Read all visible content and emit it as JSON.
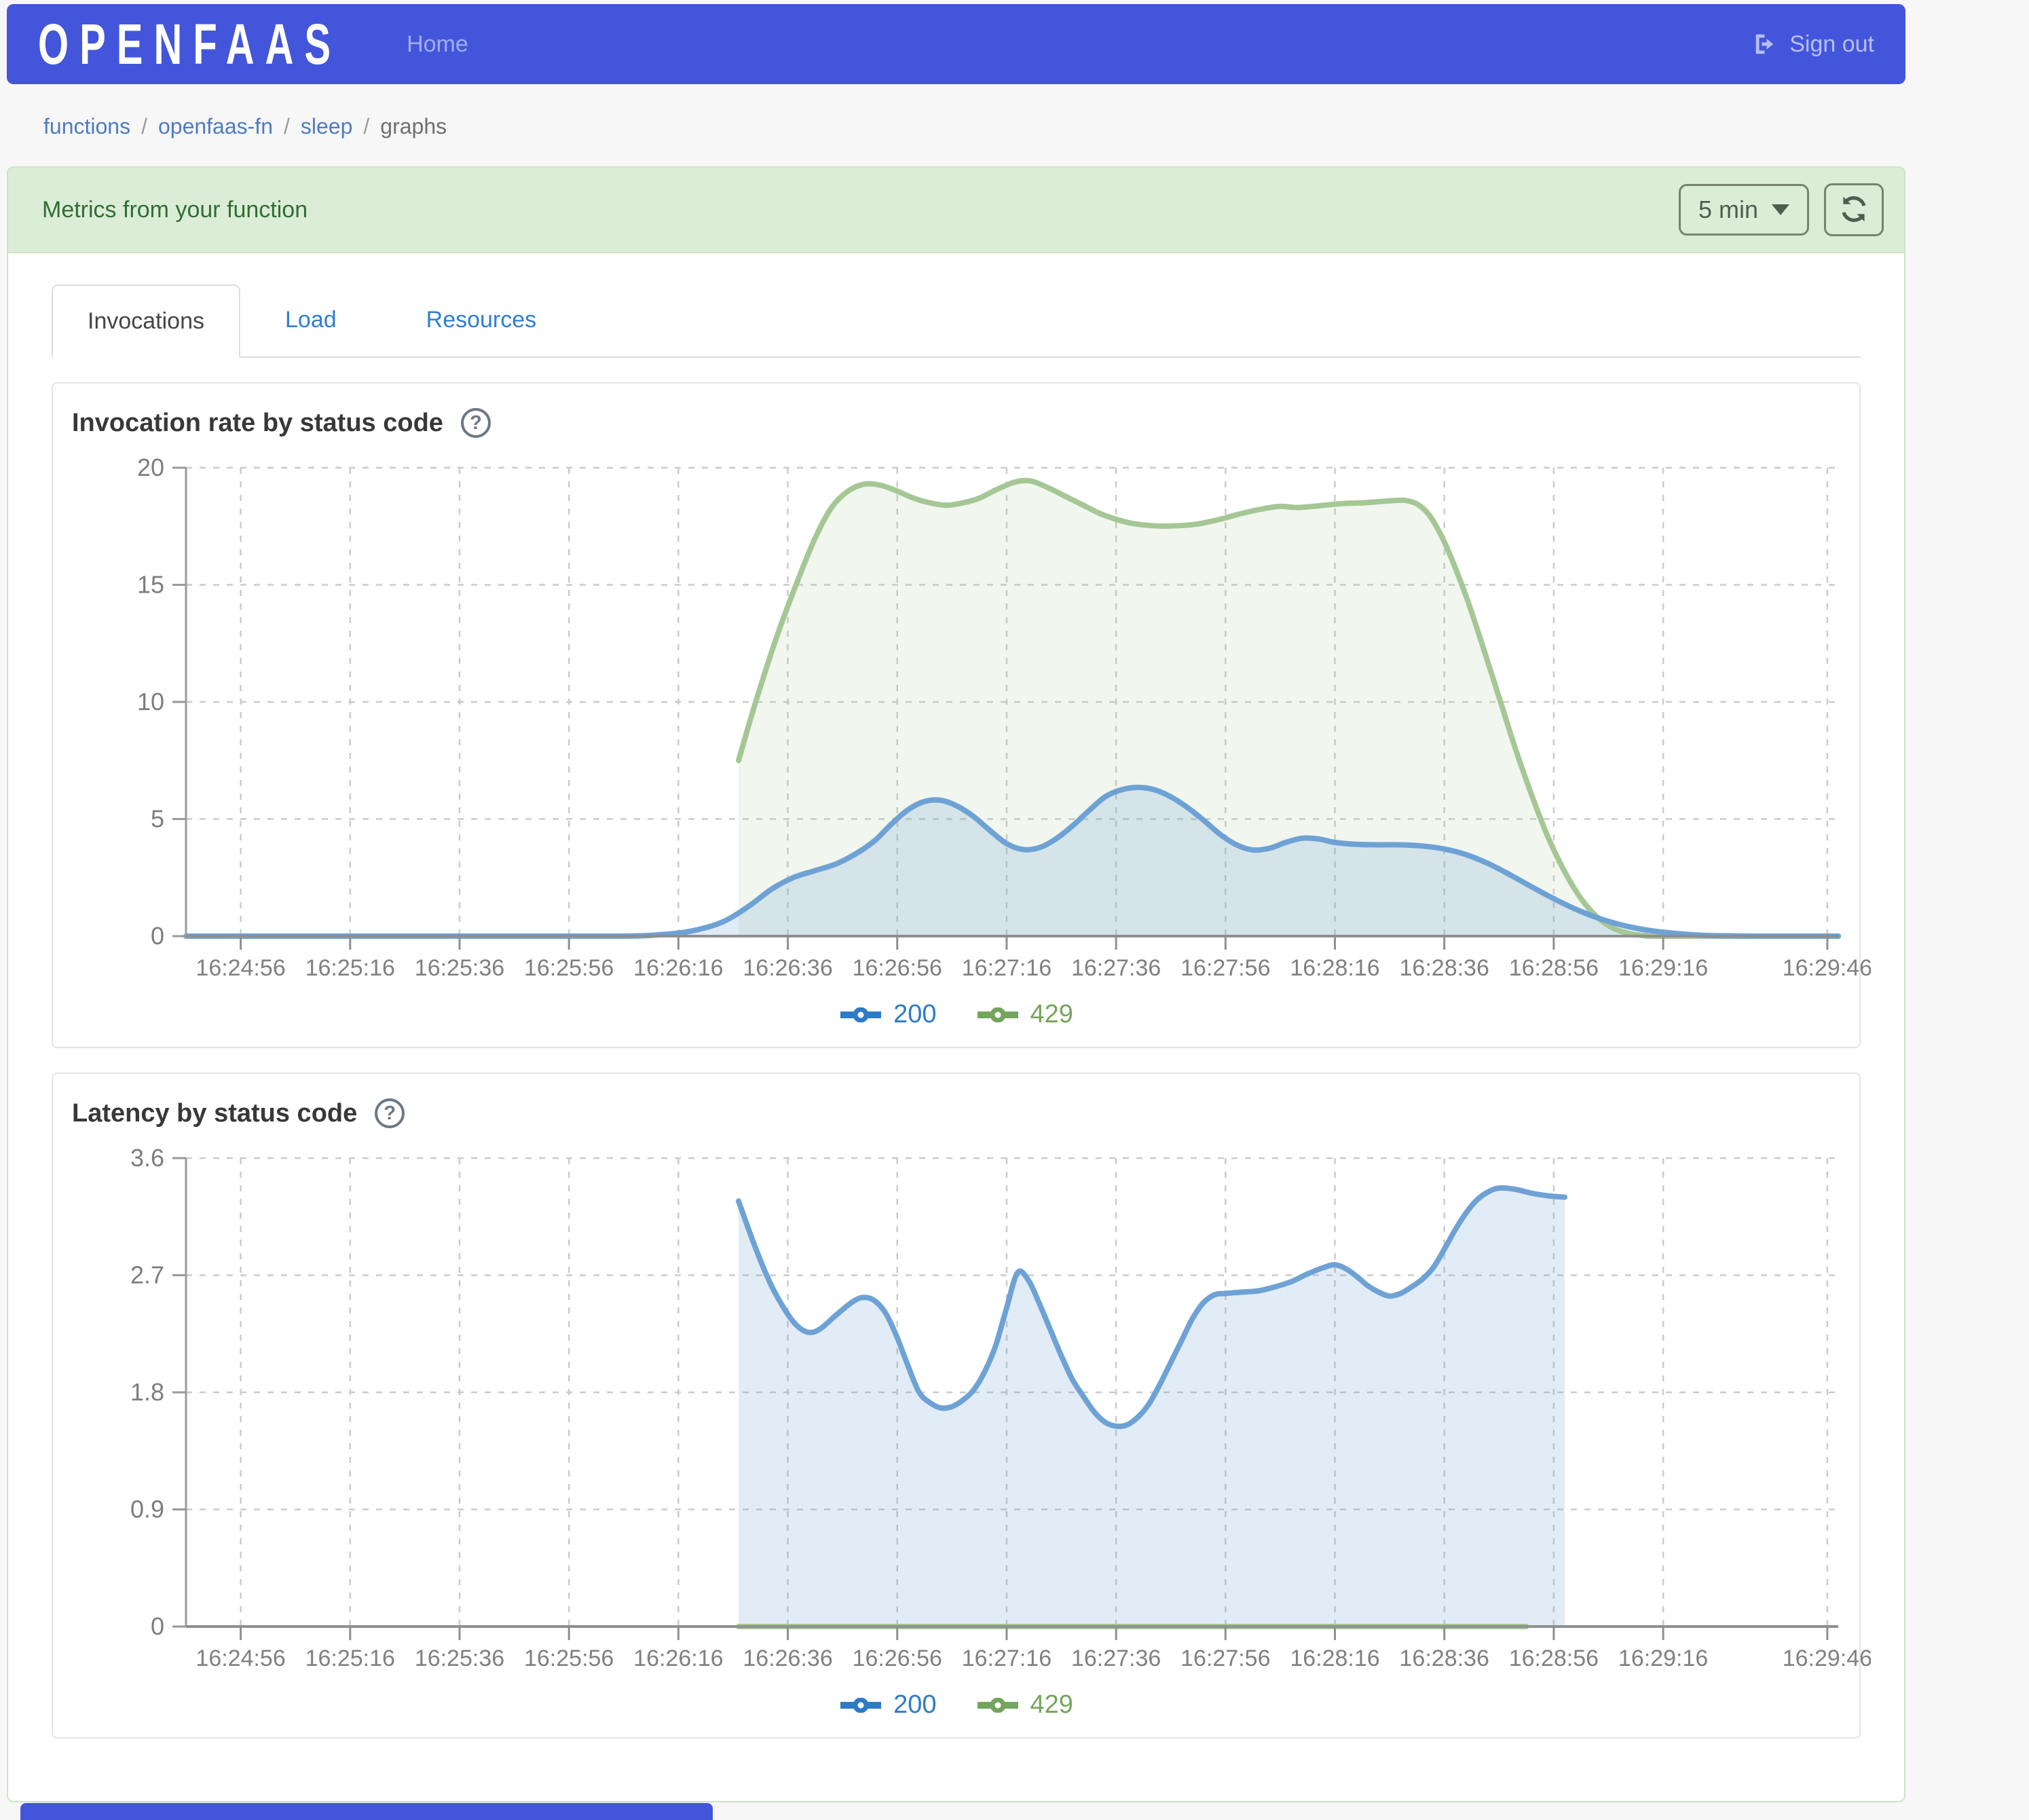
{
  "navbar": {
    "brand": "OPENFAAS",
    "home_label": "Home",
    "signout_label": "Sign out"
  },
  "breadcrumb": {
    "items": [
      "functions",
      "openfaas-fn",
      "sleep"
    ],
    "current": "graphs"
  },
  "panel": {
    "title": "Metrics from your function",
    "range_label": "5 min"
  },
  "tabs": {
    "invocations": "Invocations",
    "load": "Load",
    "resources": "Resources"
  },
  "colors": {
    "navbar_blue": "#4356db",
    "panel_green_bg": "#dcedd7",
    "panel_green_border": "#cfe3c8",
    "panel_green_text": "#2f6e33",
    "link_blue": "#2f7ed2",
    "breadcrumb_link": "#4d7cc1",
    "series_200_line": "#6ea2d5",
    "series_200_legend": "#2d7bc6",
    "series_429_line": "#a5c795",
    "series_429_legend": "#74a55c",
    "grid": "#cbcbcb",
    "axis": "#8f8f8f",
    "tick_text": "#808080"
  },
  "chart_data": [
    {
      "type": "area",
      "title": "Invocation rate by status code",
      "ylim": [
        0,
        20
      ],
      "y_ticks": [
        {
          "v": 0,
          "label": "0"
        },
        {
          "v": 5,
          "label": "5"
        },
        {
          "v": 10,
          "label": "10"
        },
        {
          "v": 15,
          "label": "15"
        },
        {
          "v": 20,
          "label": "20"
        }
      ],
      "x_domain": [
        -10,
        292
      ],
      "x_ticks": [
        {
          "t": 0,
          "label": "16:24:56"
        },
        {
          "t": 20,
          "label": "16:25:16"
        },
        {
          "t": 40,
          "label": "16:25:36"
        },
        {
          "t": 60,
          "label": "16:25:56"
        },
        {
          "t": 80,
          "label": "16:26:16"
        },
        {
          "t": 100,
          "label": "16:26:36"
        },
        {
          "t": 120,
          "label": "16:26:56"
        },
        {
          "t": 140,
          "label": "16:27:16"
        },
        {
          "t": 160,
          "label": "16:27:36"
        },
        {
          "t": 180,
          "label": "16:27:56"
        },
        {
          "t": 200,
          "label": "16:28:16"
        },
        {
          "t": 220,
          "label": "16:28:36"
        },
        {
          "t": 240,
          "label": "16:28:56"
        },
        {
          "t": 260,
          "label": "16:29:16"
        },
        {
          "t": 290,
          "label": "16:29:46"
        }
      ],
      "legend_position": "bottom-center",
      "grid": true,
      "series": [
        {
          "name": "429",
          "color": "#a5c795",
          "fill": true,
          "fill_opacity": 0.16,
          "points": [
            [
              91,
              7.5
            ],
            [
              94,
              9.9
            ],
            [
              98,
              12.8
            ],
            [
              102,
              15.3
            ],
            [
              105,
              17.0
            ],
            [
              108,
              18.3
            ],
            [
              111,
              19.0
            ],
            [
              114,
              19.3
            ],
            [
              117,
              19.25
            ],
            [
              120,
              19.0
            ],
            [
              123,
              18.7
            ],
            [
              126,
              18.5
            ],
            [
              129,
              18.4
            ],
            [
              132,
              18.5
            ],
            [
              135,
              18.7
            ],
            [
              138,
              19.05
            ],
            [
              141,
              19.35
            ],
            [
              143,
              19.45
            ],
            [
              145,
              19.4
            ],
            [
              148,
              19.1
            ],
            [
              151,
              18.75
            ],
            [
              154,
              18.4
            ],
            [
              157,
              18.05
            ],
            [
              160,
              17.8
            ],
            [
              163,
              17.62
            ],
            [
              167,
              17.52
            ],
            [
              171,
              17.52
            ],
            [
              175,
              17.6
            ],
            [
              179,
              17.8
            ],
            [
              183,
              18.05
            ],
            [
              187,
              18.25
            ],
            [
              190,
              18.35
            ],
            [
              193,
              18.3
            ],
            [
              196,
              18.35
            ],
            [
              199,
              18.42
            ],
            [
              202,
              18.48
            ],
            [
              205,
              18.5
            ],
            [
              208,
              18.55
            ],
            [
              211,
              18.6
            ],
            [
              213,
              18.6
            ],
            [
              215,
              18.45
            ],
            [
              217,
              18.05
            ],
            [
              219,
              17.3
            ],
            [
              221,
              16.3
            ],
            [
              224,
              14.5
            ],
            [
              227,
              12.4
            ],
            [
              230,
              10.2
            ],
            [
              233,
              8.0
            ],
            [
              236,
              6.0
            ],
            [
              239,
              4.2
            ],
            [
              242,
              2.75
            ],
            [
              245,
              1.6
            ],
            [
              248,
              0.8
            ],
            [
              251,
              0.32
            ],
            [
              254,
              0.1
            ],
            [
              257,
              0.02
            ],
            [
              260,
              0
            ],
            [
              292,
              0
            ]
          ]
        },
        {
          "name": "200",
          "color": "#6ea2d5",
          "fill": true,
          "fill_opacity": 0.22,
          "points": [
            [
              -10,
              0
            ],
            [
              20,
              0
            ],
            [
              50,
              0
            ],
            [
              70,
              0
            ],
            [
              76,
              0.05
            ],
            [
              82,
              0.2
            ],
            [
              88,
              0.6
            ],
            [
              93,
              1.3
            ],
            [
              97,
              2.0
            ],
            [
              101,
              2.5
            ],
            [
              105,
              2.8
            ],
            [
              109,
              3.1
            ],
            [
              113,
              3.6
            ],
            [
              116,
              4.1
            ],
            [
              119,
              4.8
            ],
            [
              122,
              5.4
            ],
            [
              125,
              5.75
            ],
            [
              128,
              5.8
            ],
            [
              131,
              5.55
            ],
            [
              134,
              5.1
            ],
            [
              137,
              4.5
            ],
            [
              140,
              3.95
            ],
            [
              143,
              3.7
            ],
            [
              146,
              3.78
            ],
            [
              149,
              4.15
            ],
            [
              152,
              4.7
            ],
            [
              155,
              5.35
            ],
            [
              158,
              5.95
            ],
            [
              161,
              6.25
            ],
            [
              164,
              6.35
            ],
            [
              167,
              6.25
            ],
            [
              170,
              5.95
            ],
            [
              173,
              5.5
            ],
            [
              176,
              4.95
            ],
            [
              179,
              4.35
            ],
            [
              182,
              3.9
            ],
            [
              185,
              3.68
            ],
            [
              188,
              3.75
            ],
            [
              191,
              4.0
            ],
            [
              194,
              4.18
            ],
            [
              197,
              4.15
            ],
            [
              200,
              4.0
            ],
            [
              204,
              3.92
            ],
            [
              208,
              3.9
            ],
            [
              212,
              3.9
            ],
            [
              216,
              3.85
            ],
            [
              220,
              3.72
            ],
            [
              224,
              3.48
            ],
            [
              228,
              3.1
            ],
            [
              232,
              2.62
            ],
            [
              236,
              2.1
            ],
            [
              240,
              1.6
            ],
            [
              244,
              1.15
            ],
            [
              248,
              0.78
            ],
            [
              252,
              0.5
            ],
            [
              256,
              0.3
            ],
            [
              260,
              0.17
            ],
            [
              264,
              0.08
            ],
            [
              268,
              0.03
            ],
            [
              273,
              0.01
            ],
            [
              278,
              0
            ],
            [
              292,
              0
            ]
          ]
        }
      ]
    },
    {
      "type": "area",
      "title": "Latency by status code",
      "ylim": [
        0,
        3.6
      ],
      "y_ticks": [
        {
          "v": 0,
          "label": "0"
        },
        {
          "v": 0.9,
          "label": "0.9"
        },
        {
          "v": 1.8,
          "label": "1.8"
        },
        {
          "v": 2.7,
          "label": "2.7"
        },
        {
          "v": 3.6,
          "label": "3.6"
        }
      ],
      "x_domain": [
        -10,
        292
      ],
      "x_ticks": [
        {
          "t": 0,
          "label": "16:24:56"
        },
        {
          "t": 20,
          "label": "16:25:16"
        },
        {
          "t": 40,
          "label": "16:25:36"
        },
        {
          "t": 60,
          "label": "16:25:56"
        },
        {
          "t": 80,
          "label": "16:26:16"
        },
        {
          "t": 100,
          "label": "16:26:36"
        },
        {
          "t": 120,
          "label": "16:26:56"
        },
        {
          "t": 140,
          "label": "16:27:16"
        },
        {
          "t": 160,
          "label": "16:27:36"
        },
        {
          "t": 180,
          "label": "16:27:56"
        },
        {
          "t": 200,
          "label": "16:28:16"
        },
        {
          "t": 220,
          "label": "16:28:36"
        },
        {
          "t": 240,
          "label": "16:28:56"
        },
        {
          "t": 260,
          "label": "16:29:16"
        },
        {
          "t": 290,
          "label": "16:29:46"
        }
      ],
      "legend_position": "bottom-center",
      "grid": true,
      "series": [
        {
          "name": "429",
          "color": "#a5c795",
          "fill": false,
          "fill_opacity": 0,
          "points": [
            [
              91,
              0
            ],
            [
              235,
              0
            ]
          ]
        },
        {
          "name": "200",
          "color": "#6ea2d5",
          "fill": true,
          "fill_opacity": 0.2,
          "points": [
            [
              91,
              3.27
            ],
            [
              94,
              2.92
            ],
            [
              97,
              2.62
            ],
            [
              100,
              2.4
            ],
            [
              102,
              2.3
            ],
            [
              104,
              2.26
            ],
            [
              106,
              2.29
            ],
            [
              109,
              2.4
            ],
            [
              112,
              2.5
            ],
            [
              114,
              2.53
            ],
            [
              116,
              2.5
            ],
            [
              118,
              2.4
            ],
            [
              120,
              2.22
            ],
            [
              122,
              2.0
            ],
            [
              124,
              1.8
            ],
            [
              126,
              1.72
            ],
            [
              128,
              1.68
            ],
            [
              130,
              1.69
            ],
            [
              132,
              1.74
            ],
            [
              134,
              1.82
            ],
            [
              136,
              1.96
            ],
            [
              138,
              2.16
            ],
            [
              140,
              2.45
            ],
            [
              142,
              2.72
            ],
            [
              144,
              2.66
            ],
            [
              146,
              2.48
            ],
            [
              148,
              2.28
            ],
            [
              150,
              2.08
            ],
            [
              152,
              1.9
            ],
            [
              154,
              1.77
            ],
            [
              156,
              1.65
            ],
            [
              158,
              1.57
            ],
            [
              160,
              1.54
            ],
            [
              162,
              1.55
            ],
            [
              164,
              1.61
            ],
            [
              166,
              1.71
            ],
            [
              168,
              1.86
            ],
            [
              170,
              2.03
            ],
            [
              172,
              2.2
            ],
            [
              174,
              2.37
            ],
            [
              176,
              2.49
            ],
            [
              178,
              2.55
            ],
            [
              180,
              2.56
            ],
            [
              183,
              2.57
            ],
            [
              186,
              2.58
            ],
            [
              189,
              2.61
            ],
            [
              192,
              2.65
            ],
            [
              195,
              2.71
            ],
            [
              198,
              2.76
            ],
            [
              200,
              2.78
            ],
            [
              202,
              2.75
            ],
            [
              204,
              2.69
            ],
            [
              206,
              2.62
            ],
            [
              208,
              2.57
            ],
            [
              210,
              2.54
            ],
            [
              212,
              2.56
            ],
            [
              214,
              2.61
            ],
            [
              216,
              2.67
            ],
            [
              218,
              2.76
            ],
            [
              220,
              2.9
            ],
            [
              222,
              3.05
            ],
            [
              224,
              3.18
            ],
            [
              226,
              3.28
            ],
            [
              228,
              3.34
            ],
            [
              230,
              3.37
            ],
            [
              233,
              3.36
            ],
            [
              236,
              3.33
            ],
            [
              239,
              3.31
            ],
            [
              242,
              3.3
            ]
          ]
        }
      ]
    }
  ]
}
